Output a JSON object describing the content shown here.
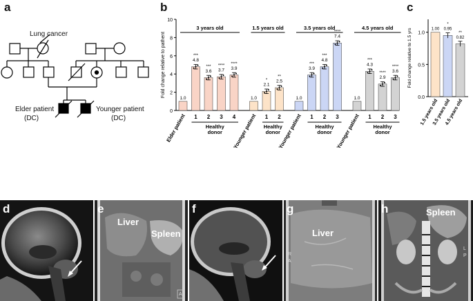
{
  "figure": {
    "panel_a": {
      "letter": "a",
      "lung_cancer_label": "Lung cancer",
      "elder_label": "Elder patient",
      "elder_sub": "(DC)",
      "younger_label": "Younger patient",
      "younger_sub": "(DC)"
    },
    "panel_b": {
      "letter": "b"
    },
    "panel_c": {
      "letter": "c"
    },
    "panel_d": {
      "letter": "d"
    },
    "panel_e": {
      "letter": "e",
      "liver": "Liver",
      "spleen": "Spleen",
      "corner": "A"
    },
    "panel_f": {
      "letter": "f"
    },
    "panel_g": {
      "letter": "g",
      "liver": "Liver",
      "side_labels": [
        "R",
        "A"
      ]
    },
    "panel_h": {
      "letter": "h",
      "spleen": "Spleen",
      "side_labels": [
        "L",
        "P"
      ]
    }
  },
  "chart_data": [
    {
      "type": "bar",
      "panel": "b",
      "ylabel": "Fold change relative to pathent",
      "ylim": [
        0,
        10
      ],
      "yticks": [
        0,
        2,
        4,
        6,
        8,
        10
      ],
      "groups": [
        {
          "title": "3 years old",
          "color": "#f9d4c6",
          "bars": [
            {
              "label": "Elder patient",
              "value": 1.0,
              "stars": ""
            },
            {
              "label": "1",
              "value": 4.8,
              "stars": "***"
            },
            {
              "label": "2",
              "value": 3.6,
              "stars": "***"
            },
            {
              "label": "3",
              "value": 3.7,
              "stars": "****"
            },
            {
              "label": "4",
              "value": 3.9,
              "stars": "****"
            }
          ],
          "donor_label": "Healthy donor"
        },
        {
          "title": "1.5 years old",
          "color": "#fde3c8",
          "bars": [
            {
              "label": "Younger patient",
              "value": 1.0,
              "stars": ""
            },
            {
              "label": "1",
              "value": 2.1,
              "stars": "*"
            },
            {
              "label": "2",
              "value": 2.5,
              "stars": "**"
            }
          ],
          "donor_label": "Healthy donor"
        },
        {
          "title": "3.5 years old",
          "color": "#cbd6f5",
          "bars": [
            {
              "label": "Younger patient",
              "value": 1.0,
              "stars": ""
            },
            {
              "label": "1",
              "value": 3.9,
              "stars": "***"
            },
            {
              "label": "2",
              "value": 4.8,
              "stars": "***"
            },
            {
              "label": "3",
              "value": 7.4,
              "stars": "****"
            }
          ],
          "donor_label": "Healthy donor"
        },
        {
          "title": "4.5 years old",
          "color": "#d3d3d3",
          "bars": [
            {
              "label": "Younger patient",
              "value": 1.0,
              "stars": ""
            },
            {
              "label": "1",
              "value": 4.3,
              "stars": "***"
            },
            {
              "label": "2",
              "value": 2.9,
              "stars": "****"
            },
            {
              "label": "3",
              "value": 3.6,
              "stars": "****"
            }
          ],
          "donor_label": "Healthy donor"
        }
      ]
    },
    {
      "type": "bar",
      "panel": "c",
      "ylabel": "Fold change relative to 1.5 yrs",
      "ylim": [
        0,
        1.2
      ],
      "yticks": [
        0.0,
        0.5,
        1.0
      ],
      "ytick_labels": [
        "0.0",
        "0.5",
        "1.0"
      ],
      "bars": [
        {
          "label": "1.5 years old",
          "value": 1.0,
          "value_label": "1.00",
          "stars": "",
          "color": "#fde3c8"
        },
        {
          "label": "3.5 years old",
          "value": 0.95,
          "value_label": "0.95",
          "stars": "*",
          "color": "#cbd6f5"
        },
        {
          "label": "4.5 years old",
          "value": 0.82,
          "value_label": "0.82",
          "stars": "**",
          "color": "#d3d3d3"
        }
      ]
    }
  ]
}
